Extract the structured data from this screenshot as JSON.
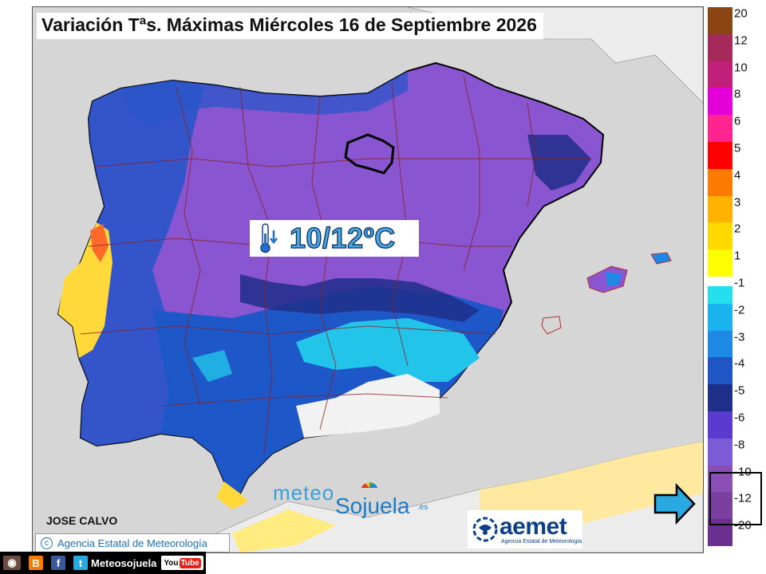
{
  "title": "Variación Tªs. Máximas Miércoles 16 de Septiembre 2026",
  "annotation": {
    "value_text": "10/12ºC",
    "icon": "thermometer-down-icon"
  },
  "author": "JOSE CALVO",
  "agency_credit": "Agencia Estatal de Meteorología",
  "meteosojuela_logo": {
    "part1": "meteo",
    "part2": "Sojuela",
    "part3": ".es"
  },
  "aemet_logo": {
    "word": "aemet",
    "subtitle": "Agencia Estatal de Meteorología"
  },
  "legend": {
    "levels": [
      {
        "label": "20",
        "color": "#8b4513"
      },
      {
        "label": "12",
        "color": "#a52a5a"
      },
      {
        "label": "10",
        "color": "#c0207a"
      },
      {
        "label": "8",
        "color": "#e400d8"
      },
      {
        "label": "6",
        "color": "#ff2490"
      },
      {
        "label": "5",
        "color": "#ff0000"
      },
      {
        "label": "4",
        "color": "#ff7a00"
      },
      {
        "label": "3",
        "color": "#ffb300"
      },
      {
        "label": "2",
        "color": "#ffd800"
      },
      {
        "label": "1",
        "color": "#ffff00"
      },
      {
        "label": "-1",
        "color": "#24e0ee"
      },
      {
        "label": "-2",
        "color": "#1ab3f0"
      },
      {
        "label": "-3",
        "color": "#1e88e5"
      },
      {
        "label": "-4",
        "color": "#1f55c5"
      },
      {
        "label": "-5",
        "color": "#1e2f8a"
      },
      {
        "label": "-6",
        "color": "#5a3ad1"
      },
      {
        "label": "-8",
        "color": "#7b5bd6"
      },
      {
        "label": "-10",
        "color": "#8a4fb5"
      },
      {
        "label": "-12",
        "color": "#7b3fa0"
      },
      {
        "label": "-20",
        "color": "#6b2f90"
      }
    ],
    "highlighted_range": [
      "-10",
      "-12"
    ]
  },
  "footer": {
    "brand": "Meteosojuela",
    "youtube_you": "You",
    "youtube_tube": "Tube",
    "icons": [
      "instagram-icon",
      "blogger-icon",
      "facebook-icon",
      "twitter-icon",
      "youtube-icon"
    ]
  }
}
